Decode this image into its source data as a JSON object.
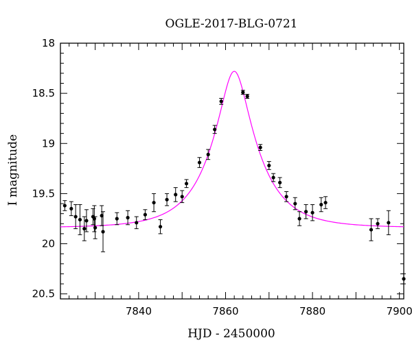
{
  "chart_data": {
    "type": "scatter",
    "title": "OGLE-2017-BLG-0721",
    "xlabel": "HJD - 2450000",
    "ylabel": "I magnitude",
    "xlim": [
      7822,
      7901
    ],
    "ylim": [
      20.55,
      18.0
    ],
    "y_inverted": true,
    "xticks": [
      7840,
      7860,
      7880,
      7900
    ],
    "yticks": [
      18,
      18.5,
      19,
      19.5,
      20,
      20.5
    ],
    "ytick_labels": [
      "18",
      "18.5",
      "19",
      "19.5",
      "20",
      "20.5"
    ],
    "grid": false,
    "model_color": "#ff00ff",
    "point_color": "#000000",
    "model": {
      "name": "",
      "t0": 7862.0,
      "peak_mag": 18.28,
      "baseline_mag": 19.84
    },
    "series": [
      {
        "x": [
          7823.0,
          7824.5,
          7825.5,
          7826.5,
          7827.5,
          7828.0,
          7829.5,
          7829.8,
          7830.0,
          7831.5,
          7831.8,
          7835.0,
          7837.5,
          7839.5,
          7841.5,
          7843.5,
          7845.0,
          7846.5,
          7848.5,
          7850.0,
          7851.0,
          7854.0,
          7856.0,
          7857.5,
          7859.0,
          7864.0,
          7865.0,
          7868.0,
          7870.0,
          7871.0,
          7872.5,
          7874.0,
          7876.0,
          7877.0,
          7878.5,
          7880.0,
          7882.0,
          7883.0,
          7893.5,
          7895.0,
          7897.5,
          7901.0
        ],
        "y": [
          19.62,
          19.65,
          19.73,
          19.76,
          19.85,
          19.77,
          19.73,
          19.75,
          19.84,
          19.72,
          19.88,
          19.75,
          19.74,
          19.79,
          19.71,
          19.59,
          19.83,
          19.56,
          19.51,
          19.53,
          19.4,
          19.19,
          19.11,
          18.86,
          18.58,
          18.49,
          18.53,
          19.04,
          19.22,
          19.34,
          19.39,
          19.53,
          19.6,
          19.75,
          19.68,
          19.69,
          19.61,
          19.59,
          19.86,
          19.8,
          19.79,
          20.35
        ],
        "err": [
          0.05,
          0.07,
          0.12,
          0.15,
          0.12,
          0.11,
          0.08,
          0.13,
          0.11,
          0.1,
          0.2,
          0.06,
          0.07,
          0.06,
          0.05,
          0.09,
          0.07,
          0.06,
          0.07,
          0.06,
          0.04,
          0.05,
          0.05,
          0.04,
          0.03,
          0.02,
          0.02,
          0.03,
          0.04,
          0.04,
          0.05,
          0.05,
          0.06,
          0.07,
          0.07,
          0.08,
          0.07,
          0.06,
          0.11,
          0.05,
          0.12,
          0.05
        ]
      }
    ]
  }
}
